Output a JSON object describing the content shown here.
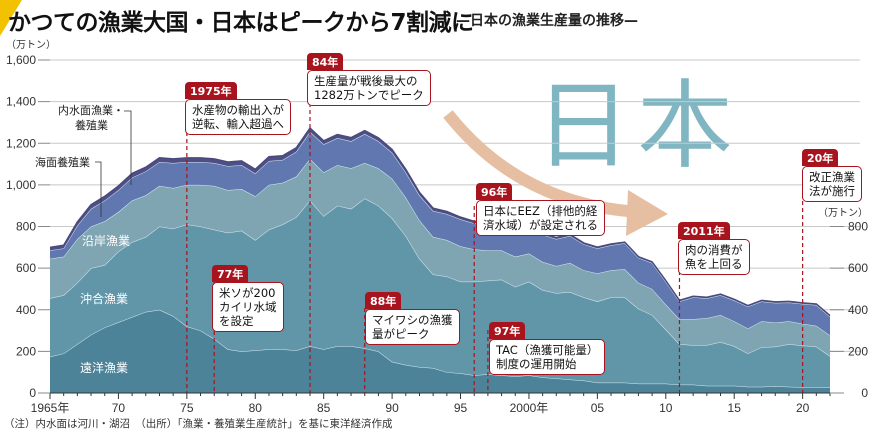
{
  "header": {
    "title": "かつての漁業大国・日本はピークから7割減に",
    "subtitle": "—日本の漁業生産量の推移—"
  },
  "watermark": "日本",
  "note": "（注）内水面は河川・湖沼　（出所）「漁業・養殖業生産統計」を基に東洋経済作成",
  "colors": {
    "distant": "#4c8399",
    "offshore": "#6195a8",
    "coastal": "#7fa5b2",
    "marine_aquaculture": "#6077b0",
    "inland": "#4f4f86",
    "annotation": "#a8141e",
    "arrow": "#e6bfa2",
    "accent_corner": "#f2c200"
  },
  "annotations": [
    {
      "year_label": "1975年",
      "text": [
        "水産物の輸出入が",
        "逆転、輸入超過へ"
      ],
      "x": 1975
    },
    {
      "year_label": "84年",
      "text": [
        "生産量が戦後最大の",
        "1282万トンでピーク"
      ],
      "x": 1984
    },
    {
      "year_label": "77年",
      "text": [
        "米ソが200",
        "カイリ水域",
        "を設定"
      ],
      "x": 1977
    },
    {
      "year_label": "88年",
      "text": [
        "マイワシの漁獲",
        "量がピーク"
      ],
      "x": 1988
    },
    {
      "year_label": "96年",
      "text": [
        "日本にEEZ（排他的経",
        "済水域）が設定される"
      ],
      "x": 1996
    },
    {
      "year_label": "97年",
      "text": [
        "TAC（漁獲可能量）",
        "制度の運用開始"
      ],
      "x": 1997
    },
    {
      "year_label": "2011年",
      "text": [
        "肉の消費が",
        "魚を上回る"
      ],
      "x": 2011
    },
    {
      "year_label": "20年",
      "text": [
        "改正漁業",
        "法が施行"
      ],
      "x": 2020
    }
  ],
  "chart_data": {
    "type": "area",
    "stacked": true,
    "title": "日本の漁業生産量の推移",
    "xlabel": "",
    "ylabel": "（万トン）",
    "ylabel_right": "（万トン）",
    "ylim": [
      0,
      1600
    ],
    "ylim_right": [
      0,
      800
    ],
    "yticks": [
      0,
      200,
      400,
      600,
      800,
      1000,
      1200,
      1400,
      1600
    ],
    "ytick_labels": [
      "0",
      "200",
      "400",
      "600",
      "800",
      "1,000",
      "1,200",
      "1,400",
      "1,600"
    ],
    "yticks_right": [
      0,
      200,
      400,
      600,
      800
    ],
    "ytick_labels_right": [
      "0",
      "200",
      "400",
      "600",
      "800"
    ],
    "xlim": [
      1965,
      2022
    ],
    "xticks": [
      1965,
      1970,
      1975,
      1980,
      1985,
      1990,
      1995,
      2000,
      2005,
      2010,
      2015,
      2020
    ],
    "xtick_labels": [
      "1965年",
      "70",
      "75",
      "80",
      "85",
      "90",
      "95",
      "2000年",
      "05",
      "10",
      "15",
      "20"
    ],
    "grid": true,
    "legend": "inline-labels",
    "x": [
      1965,
      1966,
      1967,
      1968,
      1969,
      1970,
      1971,
      1972,
      1973,
      1974,
      1975,
      1976,
      1977,
      1978,
      1979,
      1980,
      1981,
      1982,
      1983,
      1984,
      1985,
      1986,
      1987,
      1988,
      1989,
      1990,
      1991,
      1992,
      1993,
      1994,
      1995,
      1996,
      1997,
      1998,
      1999,
      2000,
      2001,
      2002,
      2003,
      2004,
      2005,
      2006,
      2007,
      2008,
      2009,
      2010,
      2011,
      2012,
      2013,
      2014,
      2015,
      2016,
      2017,
      2018,
      2019,
      2020,
      2021,
      2022
    ],
    "series": [
      {
        "name": "遠洋漁業",
        "key": "distant",
        "values": [
          175,
          190,
          235,
          280,
          315,
          340,
          365,
          390,
          400,
          370,
          320,
          300,
          260,
          210,
          200,
          205,
          210,
          210,
          205,
          225,
          210,
          225,
          225,
          215,
          200,
          150,
          135,
          125,
          120,
          100,
          95,
          85,
          90,
          85,
          80,
          85,
          75,
          70,
          65,
          60,
          50,
          50,
          50,
          45,
          45,
          45,
          40,
          40,
          35,
          35,
          35,
          30,
          30,
          33,
          30,
          28,
          28,
          27
        ]
      },
      {
        "name": "沖合漁業",
        "key": "offshore",
        "values": [
          280,
          280,
          295,
          320,
          300,
          340,
          360,
          360,
          400,
          420,
          490,
          500,
          525,
          560,
          580,
          530,
          575,
          600,
          640,
          700,
          640,
          675,
          660,
          720,
          700,
          690,
          620,
          520,
          450,
          460,
          440,
          450,
          450,
          460,
          430,
          450,
          420,
          410,
          420,
          400,
          390,
          410,
          410,
          360,
          330,
          260,
          195,
          190,
          195,
          210,
          190,
          160,
          190,
          190,
          205,
          200,
          195,
          150
        ]
      },
      {
        "name": "沿岸漁業",
        "key": "coastal",
        "values": [
          190,
          185,
          210,
          200,
          210,
          190,
          200,
          200,
          195,
          195,
          190,
          200,
          210,
          205,
          200,
          210,
          215,
          200,
          195,
          200,
          210,
          195,
          195,
          170,
          180,
          190,
          185,
          185,
          180,
          175,
          170,
          155,
          145,
          140,
          145,
          135,
          135,
          130,
          140,
          130,
          135,
          130,
          135,
          125,
          125,
          120,
          120,
          125,
          130,
          130,
          120,
          120,
          125,
          115,
          110,
          105,
          100,
          100
        ]
      },
      {
        "name": "海面養殖業",
        "key": "marine_aquaculture",
        "values": [
          40,
          40,
          65,
          85,
          100,
          105,
          110,
          115,
          115,
          120,
          110,
          110,
          110,
          115,
          115,
          110,
          115,
          110,
          120,
          130,
          135,
          130,
          130,
          140,
          130,
          125,
          120,
          120,
          125,
          125,
          130,
          125,
          130,
          115,
          120,
          125,
          130,
          130,
          130,
          125,
          120,
          120,
          125,
          120,
          125,
          110,
          85,
          105,
          95,
          95,
          100,
          105,
          95,
          95,
          90,
          95,
          100,
          90
        ]
      },
      {
        "name": "内水面漁業・養殖業",
        "key": "inland",
        "values": [
          15,
          15,
          17,
          20,
          20,
          20,
          20,
          20,
          20,
          20,
          20,
          20,
          20,
          20,
          20,
          20,
          20,
          20,
          18,
          18,
          17,
          17,
          17,
          16,
          16,
          15,
          15,
          14,
          13,
          12,
          10,
          10,
          9,
          8,
          8,
          8,
          7,
          7,
          7,
          6,
          6,
          6,
          5,
          5,
          5,
          5,
          5,
          5,
          5,
          5,
          5,
          5,
          5,
          5,
          5,
          5,
          5,
          5
        ]
      }
    ],
    "layer_labels": {
      "distant": "遠洋漁業",
      "offshore": "沖合漁業",
      "coastal": "沿岸漁業",
      "marine_aquaculture": "海面養殖業",
      "inland": "内水面漁業・\n養殖業"
    },
    "peak": {
      "year": 1984,
      "value": 1282,
      "unit": "万トン"
    }
  }
}
